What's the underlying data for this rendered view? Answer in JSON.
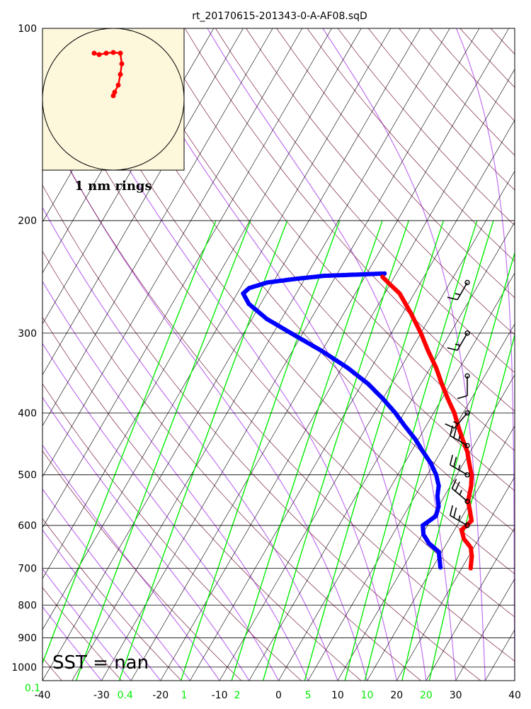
{
  "chart_data": {
    "type": "skew-t",
    "title": "rt_20170615-201343-0-A-AF08.sqD",
    "xlabel": "",
    "ylabel": "",
    "x_ticks": [
      -40,
      -30,
      -20,
      -10,
      0,
      10,
      20,
      30,
      40
    ],
    "y_ticks": [
      100,
      200,
      300,
      400,
      500,
      600,
      700,
      800,
      900,
      1000
    ],
    "xlim": [
      -40,
      40
    ],
    "ylim": [
      1050,
      100
    ],
    "mixing_ratio_ticks": [
      {
        "label": "0.1",
        "t": -40
      },
      {
        "label": "0.4",
        "t": -26
      },
      {
        "label": "1",
        "t": -16
      },
      {
        "label": "2",
        "t": -7
      },
      {
        "label": "5",
        "t": 5
      },
      {
        "label": "10",
        "t": 15
      },
      {
        "label": "20",
        "t": 25
      }
    ],
    "sst_text": "SST =  nan",
    "hodograph_label": "1 nm rings",
    "colors": {
      "temperature": "#ff0000",
      "dewpoint": "#0000ff",
      "isotherm": "#000000",
      "dry_adiabat": "#7a2040",
      "moist_adiabat": "#c070f0",
      "mixing_ratio": "#00ee00",
      "hodograph_bg": "#fdf8dc"
    },
    "temperature": [
      {
        "p": 700,
        "t": 21.5
      },
      {
        "p": 670,
        "t": 20.5
      },
      {
        "p": 650,
        "t": 19.5
      },
      {
        "p": 630,
        "t": 17.5
      },
      {
        "p": 610,
        "t": 16.2
      },
      {
        "p": 590,
        "t": 17.0
      },
      {
        "p": 570,
        "t": 15.8
      },
      {
        "p": 550,
        "t": 14.5
      },
      {
        "p": 520,
        "t": 13.5
      },
      {
        "p": 500,
        "t": 12.5
      },
      {
        "p": 480,
        "t": 11.0
      },
      {
        "p": 460,
        "t": 9.5
      },
      {
        "p": 440,
        "t": 7.5
      },
      {
        "p": 420,
        "t": 5.5
      },
      {
        "p": 400,
        "t": 3.5
      },
      {
        "p": 380,
        "t": 1.0
      },
      {
        "p": 360,
        "t": -1.5
      },
      {
        "p": 340,
        "t": -4.0
      },
      {
        "p": 320,
        "t": -7.0
      },
      {
        "p": 300,
        "t": -10.0
      },
      {
        "p": 280,
        "t": -13.5
      },
      {
        "p": 260,
        "t": -17.5
      },
      {
        "p": 250,
        "t": -20.5
      },
      {
        "p": 245,
        "t": -22.0
      }
    ],
    "dewpoint": [
      {
        "p": 698,
        "t": 16.3
      },
      {
        "p": 660,
        "t": 14.5
      },
      {
        "p": 640,
        "t": 12.0
      },
      {
        "p": 620,
        "t": 10.2
      },
      {
        "p": 600,
        "t": 9.2
      },
      {
        "p": 580,
        "t": 10.5
      },
      {
        "p": 560,
        "t": 10.0
      },
      {
        "p": 540,
        "t": 8.8
      },
      {
        "p": 520,
        "t": 8.0
      },
      {
        "p": 500,
        "t": 6.5
      },
      {
        "p": 480,
        "t": 4.5
      },
      {
        "p": 460,
        "t": 2.0
      },
      {
        "p": 440,
        "t": -0.5
      },
      {
        "p": 420,
        "t": -3.5
      },
      {
        "p": 400,
        "t": -6.5
      },
      {
        "p": 380,
        "t": -10.0
      },
      {
        "p": 360,
        "t": -14.0
      },
      {
        "p": 340,
        "t": -19.0
      },
      {
        "p": 320,
        "t": -25.0
      },
      {
        "p": 300,
        "t": -32.0
      },
      {
        "p": 285,
        "t": -37.5
      },
      {
        "p": 270,
        "t": -42.0
      },
      {
        "p": 260,
        "t": -44.0
      },
      {
        "p": 255,
        "t": -43.5
      },
      {
        "p": 250,
        "t": -41.0
      },
      {
        "p": 247,
        "t": -37.0
      },
      {
        "p": 244,
        "t": -32.0
      },
      {
        "p": 243,
        "t": -27.0
      },
      {
        "p": 242,
        "t": -22.0
      }
    ],
    "wind_barbs": [
      {
        "p": 250,
        "dir": 210,
        "spd": 15
      },
      {
        "p": 300,
        "dir": 210,
        "spd": 15
      },
      {
        "p": 350,
        "dir": 180,
        "spd": 10
      },
      {
        "p": 400,
        "dir": 220,
        "spd": 15
      },
      {
        "p": 450,
        "dir": 300,
        "spd": 25
      },
      {
        "p": 500,
        "dir": 300,
        "spd": 25
      },
      {
        "p": 550,
        "dir": 310,
        "spd": 25
      },
      {
        "p": 600,
        "dir": 300,
        "spd": 25
      }
    ],
    "hodograph": [
      {
        "u": 0.0,
        "v": 0.05
      },
      {
        "u": 0.02,
        "v": 0.1
      },
      {
        "u": 0.07,
        "v": 0.2
      },
      {
        "u": 0.1,
        "v": 0.35
      },
      {
        "u": 0.12,
        "v": 0.5
      },
      {
        "u": 0.1,
        "v": 0.65
      },
      {
        "u": 0.0,
        "v": 0.66
      },
      {
        "u": -0.1,
        "v": 0.65
      },
      {
        "u": -0.2,
        "v": 0.63
      },
      {
        "u": -0.27,
        "v": 0.65
      }
    ]
  }
}
